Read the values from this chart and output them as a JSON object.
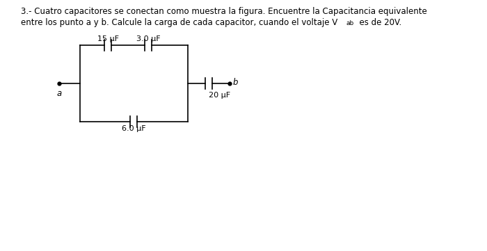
{
  "title_line1": "3.- Cuatro capacitores se conectan como muestra la figura. Encuentre la Capacitancia equivalente",
  "title_line2_pre": "entre los punto a y b. Calcule la carga de cada capacitor, cuando el voltaje V",
  "title_line2_sub": "ab",
  "title_line2_post": "  es de 20V.",
  "bg_color": "#ffffff",
  "text_color": "#000000",
  "cap_15_label": "15 μF",
  "cap_30_label": "3.0 μF",
  "cap_60_label": "6.0 μF",
  "cap_20_label": "20 μF",
  "label_a": "a",
  "label_b": "b",
  "fig_width": 7.0,
  "fig_height": 3.61,
  "dpi": 100
}
